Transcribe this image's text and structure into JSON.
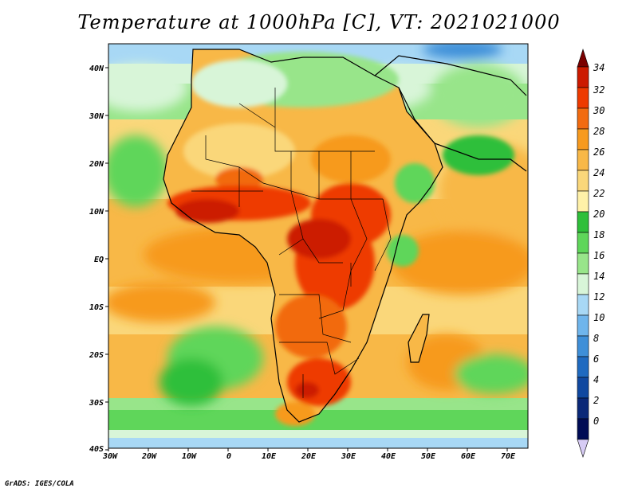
{
  "title": "Temperature at 1000hPa [C], VT: 2021021000",
  "footer": "GrADS: IGES/COLA",
  "lat_labels": [
    "40N",
    "30N",
    "20N",
    "10N",
    "EQ",
    "10S",
    "20S",
    "30S",
    "40S"
  ],
  "lon_labels": [
    "30W",
    "20W",
    "10W",
    "0",
    "10E",
    "20E",
    "30E",
    "40E",
    "50E",
    "60E",
    "70E"
  ],
  "colorbar": {
    "values": [
      "34",
      "32",
      "30",
      "28",
      "26",
      "24",
      "22",
      "20",
      "18",
      "16",
      "14",
      "12",
      "10",
      "8",
      "6",
      "4",
      "2",
      "0"
    ],
    "colors": [
      "#7a0000",
      "#cc1a00",
      "#ee3a00",
      "#f26b10",
      "#f79a1e",
      "#f8b847",
      "#fad77a",
      "#fff1a8",
      "#2fbf3a",
      "#5fd65a",
      "#98e58a",
      "#d8f5d8",
      "#a8d8f5",
      "#6fb5ec",
      "#3e8fd8",
      "#1f6ac0",
      "#1048a0",
      "#0a2878",
      "#000b55",
      "#d7ccf5"
    ]
  }
}
